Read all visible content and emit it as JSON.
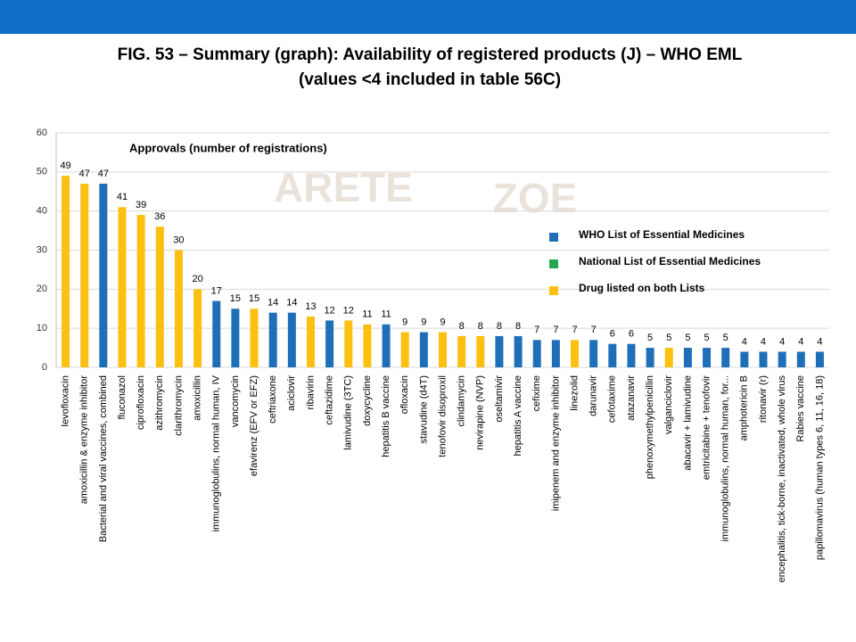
{
  "chart_data": {
    "type": "bar",
    "title": "FIG. 53 – Summary (graph): Availability of registered products (J) – WHO EML",
    "subtitle": "(values <4 included in table 56C)",
    "annotation": "Approvals (number of registrations)",
    "watermark": [
      "ARETE",
      "ZOE"
    ],
    "categories": [
      "levofloxacin",
      "amoxicillin & enzyme inhibitor",
      "Bacterial and viral vaccines, combined",
      "fluconazol",
      "ciprofloxacin",
      "azithromycin",
      "clarithromycin",
      "amoxicillin",
      "immunoglobulins, normal human, IV",
      "vancomycin",
      "efavirenz (EFV or EFZ)",
      "ceftriaxone",
      "aciclovir",
      "ribavirin",
      "ceftazidime",
      "lamivudine (3TC)",
      "doxycycline",
      "hepatitis B vaccine",
      "ofloxacin",
      "stavudine (d4T)",
      "tenofovir disoproxil",
      "clindamycin",
      "nevirapine (NVP)",
      "oseltamivir",
      "hepatitis A vaccine",
      "cefixime",
      "imipenem and enzyme inhibitor",
      "linezolid",
      "darunavir",
      "cefotaxime",
      "atazanavir",
      "phenoxymethylpenicillin",
      "valganciclovir",
      "abacavir + lamivudine",
      "emtricitabine + tenofovir",
      "immunoglobulins, normal human, for...",
      "amphotericin B",
      "ritonavir (r)",
      "encephalitis, tick-borne, inactivated, whole virus",
      "Rabies vaccine",
      "papillomavirus (human types 6, 11, 16, 18)"
    ],
    "series": [
      {
        "name": "WHO List of Essential Medicines",
        "color": "#1f6fb8",
        "values": [
          null,
          null,
          47,
          null,
          null,
          null,
          null,
          null,
          17,
          15,
          null,
          14,
          14,
          null,
          12,
          null,
          null,
          11,
          null,
          9,
          null,
          null,
          null,
          8,
          8,
          7,
          7,
          null,
          7,
          6,
          6,
          5,
          null,
          5,
          5,
          5,
          4,
          4,
          4,
          4,
          4
        ]
      },
      {
        "name": "National List of Essential Medicines",
        "color": "#21a84b",
        "values": [
          null,
          null,
          null,
          null,
          null,
          null,
          null,
          null,
          null,
          null,
          null,
          null,
          null,
          null,
          null,
          null,
          null,
          null,
          null,
          null,
          null,
          null,
          null,
          null,
          null,
          null,
          null,
          null,
          null,
          null,
          null,
          null,
          null,
          null,
          null,
          null,
          null,
          null,
          null,
          null,
          null
        ]
      },
      {
        "name": "Drug listed on both Lists",
        "color": "#fdc010",
        "values": [
          49,
          47,
          null,
          41,
          39,
          36,
          30,
          20,
          null,
          null,
          15,
          null,
          null,
          13,
          null,
          12,
          11,
          null,
          9,
          null,
          9,
          8,
          8,
          null,
          null,
          null,
          null,
          7,
          null,
          null,
          null,
          null,
          5,
          null,
          null,
          null,
          null,
          null,
          null,
          null,
          null
        ]
      }
    ],
    "ylim": [
      0,
      60
    ],
    "yticks": [
      0,
      10,
      20,
      30,
      40,
      50,
      60
    ],
    "grid": true
  }
}
